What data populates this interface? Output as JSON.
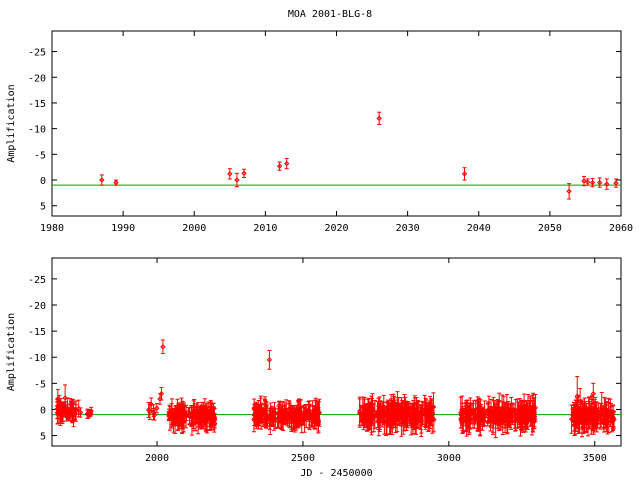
{
  "page": {
    "title": "MOA 2001-BLG-8"
  },
  "colors": {
    "data": "#ff0000",
    "model": "#00a000",
    "frame": "#000000"
  },
  "chart_data": [
    {
      "type": "scatter",
      "title": "MOA 2001-BLG-8",
      "xlabel": "",
      "ylabel": "Amplification",
      "xlim": [
        1980,
        2060
      ],
      "ylim": [
        7,
        -29
      ],
      "y_inverted": true,
      "xticks": [
        1980,
        1990,
        2000,
        2010,
        2020,
        2030,
        2040,
        2050,
        2060
      ],
      "yticks": [
        -25,
        -20,
        -15,
        -10,
        -5,
        0,
        5
      ],
      "ytick_labels": [
        "-25",
        "-20",
        "-15",
        "-10",
        "-5",
        "0",
        "5"
      ],
      "model_y": 1,
      "series": [
        {
          "points": [
            {
              "x": 1987.0,
              "y": 0.0,
              "err": 1.0
            },
            {
              "x": 1989.0,
              "y": 0.5,
              "err": 0.5
            },
            {
              "x": 2005.0,
              "y": -1.2,
              "err": 1.0
            },
            {
              "x": 2006.0,
              "y": 0.0,
              "err": 1.3
            },
            {
              "x": 2007.0,
              "y": -1.3,
              "err": 0.8
            },
            {
              "x": 2012.0,
              "y": -2.7,
              "err": 0.8
            },
            {
              "x": 2013.0,
              "y": -3.2,
              "err": 1.0
            },
            {
              "x": 2026.0,
              "y": -12.0,
              "err": 1.2
            },
            {
              "x": 2038.0,
              "y": -1.2,
              "err": 1.2
            },
            {
              "x": 2052.7,
              "y": 2.2,
              "err": 1.5
            },
            {
              "x": 2054.8,
              "y": 0.2,
              "err": 0.9
            },
            {
              "x": 2055.3,
              "y": 0.4,
              "err": 0.6
            },
            {
              "x": 2056.0,
              "y": 0.5,
              "err": 0.8
            },
            {
              "x": 2057.0,
              "y": 0.5,
              "err": 0.9
            },
            {
              "x": 2058.0,
              "y": 0.8,
              "err": 1.0
            },
            {
              "x": 2059.3,
              "y": 0.6,
              "err": 0.8
            }
          ]
        }
      ]
    },
    {
      "type": "scatter",
      "title": "",
      "xlabel": "JD - 2450000",
      "ylabel": "Amplification",
      "xlim": [
        1640,
        3590
      ],
      "ylim": [
        7,
        -29
      ],
      "y_inverted": true,
      "xticks": [
        2000,
        2500,
        3000,
        3500
      ],
      "yticks": [
        -25,
        -20,
        -15,
        -10,
        -5,
        0,
        5
      ],
      "ytick_labels": [
        "-25",
        "-20",
        "-15",
        "-10",
        "-5",
        "0",
        "5"
      ],
      "model_y": 1,
      "outliers": [
        {
          "x": 2020,
          "y": -12.0,
          "err": 1.3
        },
        {
          "x": 2385,
          "y": -9.5,
          "err": 1.8
        },
        {
          "x": 1660,
          "y": -2.0,
          "err": 1.8
        },
        {
          "x": 1665,
          "y": -1.5,
          "err": 1.2
        },
        {
          "x": 1685,
          "y": -2.2,
          "err": 2.5
        },
        {
          "x": 1980,
          "y": -1.0,
          "err": 1.2
        },
        {
          "x": 2010,
          "y": -2.0,
          "err": 1.0
        },
        {
          "x": 2015,
          "y": -3.0,
          "err": 1.2
        },
        {
          "x": 3440,
          "y": -2.5,
          "err": 3.8
        },
        {
          "x": 3450,
          "y": -1.5,
          "err": 2.5
        },
        {
          "x": 3495,
          "y": -3.0,
          "err": 2.0
        }
      ],
      "clusters": [
        {
          "x_start": 1650,
          "x_end": 1740,
          "count": 45,
          "y_mean": 0.3,
          "y_spread": 1.3,
          "err_min": 0.5,
          "err_max": 2.2
        },
        {
          "x_start": 1755,
          "x_end": 1780,
          "count": 6,
          "y_mean": 0.8,
          "y_spread": 0.6,
          "err_min": 0.4,
          "err_max": 1.0
        },
        {
          "x_start": 1970,
          "x_end": 2000,
          "count": 6,
          "y_mean": 0.3,
          "y_spread": 1.0,
          "err_min": 0.5,
          "err_max": 1.5
        },
        {
          "x_start": 2040,
          "x_end": 2200,
          "count": 120,
          "y_mean": 1.3,
          "y_spread": 1.6,
          "err_min": 0.8,
          "err_max": 2.5
        },
        {
          "x_start": 2330,
          "x_end": 2560,
          "count": 160,
          "y_mean": 1.2,
          "y_spread": 1.6,
          "err_min": 0.8,
          "err_max": 2.6
        },
        {
          "x_start": 2690,
          "x_end": 2950,
          "count": 200,
          "y_mean": 1.0,
          "y_spread": 1.8,
          "err_min": 0.8,
          "err_max": 3.0
        },
        {
          "x_start": 3040,
          "x_end": 3300,
          "count": 190,
          "y_mean": 1.0,
          "y_spread": 1.8,
          "err_min": 0.8,
          "err_max": 3.0
        },
        {
          "x_start": 3420,
          "x_end": 3570,
          "count": 120,
          "y_mean": 1.2,
          "y_spread": 1.9,
          "err_min": 0.8,
          "err_max": 3.0
        }
      ]
    }
  ]
}
